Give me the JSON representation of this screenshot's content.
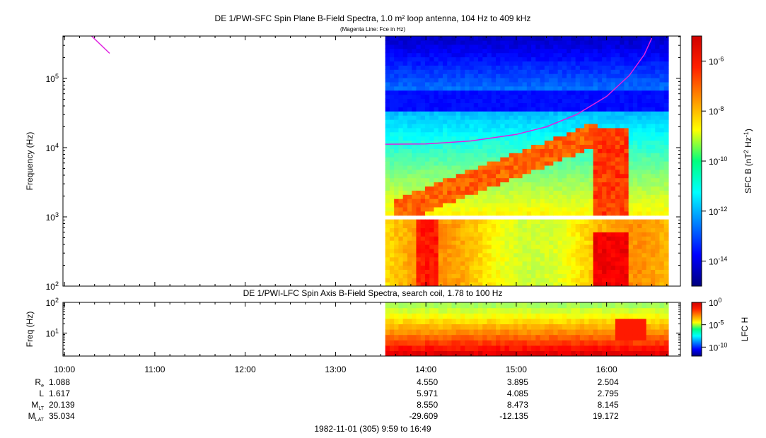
{
  "chart_data": [
    {
      "type": "heatmap",
      "title": "DE 1/PWI-SFC  Spin Plane B-Field Spectra, 1.0 m² loop antenna, 104 Hz to 409 kHz",
      "subtitle": "(Magenta Line: Fce in Hz)",
      "ylabel": "Frequency (Hz)",
      "yscale": "log",
      "ylim": [
        100,
        409000
      ],
      "yticks": [
        {
          "value": 100,
          "base": "10",
          "exp": "2"
        },
        {
          "value": 1000,
          "base": "10",
          "exp": "3"
        },
        {
          "value": 10000,
          "base": "10",
          "exp": "4"
        },
        {
          "value": 100000,
          "base": "10",
          "exp": "5"
        }
      ],
      "data_start_time": "13:33",
      "data_end_time": "16:41",
      "data_gap_hz": [
        1000,
        900
      ],
      "colorbar": {
        "label_prefix": "SFC B (nT",
        "label_exp1": "2",
        "label_mid": " Hz",
        "label_exp2": "-1",
        "label_suffix": ")",
        "scale": "log",
        "range": [
          1e-15,
          1e-05
        ],
        "ticks": [
          {
            "value": 1e-06,
            "base": "10",
            "exp": "-6"
          },
          {
            "value": 1e-08,
            "base": "10",
            "exp": "-8"
          },
          {
            "value": 1e-10,
            "base": "10",
            "exp": "-10"
          },
          {
            "value": 1e-12,
            "base": "10",
            "exp": "-12"
          },
          {
            "value": 1e-14,
            "base": "10",
            "exp": "-14"
          }
        ]
      },
      "series": [
        {
          "name": "Fce in Hz",
          "color": "#e020e0",
          "x": [
            "10:18",
            "10:30"
          ],
          "y": [
            409000,
            230000
          ]
        },
        {
          "name": "Fce in Hz",
          "color": "#e020e0",
          "x": [
            "13:33",
            "14:00",
            "14:30",
            "15:00",
            "15:20",
            "15:40",
            "16:00",
            "16:15",
            "16:25",
            "16:30"
          ],
          "y": [
            11200,
            11300,
            12500,
            15500,
            20000,
            30000,
            55000,
            110000,
            220000,
            380000
          ]
        }
      ]
    },
    {
      "type": "heatmap",
      "title": "DE 1/PWI-LFC  Spin Axis B-Field Spectra, search coil, 1.78 to 100 Hz",
      "ylabel": "Freq (Hz)",
      "yscale": "log",
      "ylim": [
        1.78,
        100
      ],
      "yticks": [
        {
          "value": 10,
          "base": "10",
          "exp": "1"
        },
        {
          "value": 100,
          "base": "10",
          "exp": "2"
        }
      ],
      "data_start_time": "13:33",
      "data_end_time": "16:41",
      "colorbar": {
        "label": "LFC H",
        "scale": "log",
        "range": [
          1e-12,
          1
        ],
        "ticks": [
          {
            "value": 1,
            "base": "10",
            "exp": "0"
          },
          {
            "value": 1e-05,
            "base": "10",
            "exp": "-5"
          },
          {
            "value": 1e-10,
            "base": "10",
            "exp": "-10"
          }
        ]
      }
    }
  ],
  "time_axis": {
    "start": "09:59",
    "end": "16:49",
    "ticks": [
      "10:00",
      "11:00",
      "12:00",
      "13:00",
      "14:00",
      "15:00",
      "16:00"
    ]
  },
  "ephemeris": [
    {
      "label": "R",
      "sub": "e",
      "first": "1.088",
      "values": [
        "4.550",
        "3.895",
        "2.504"
      ]
    },
    {
      "label": "L",
      "sub": "",
      "first": "1.617",
      "values": [
        "5.971",
        "4.085",
        "2.795"
      ]
    },
    {
      "label": "M",
      "sub": "LT",
      "first": "20.139",
      "values": [
        "8.550",
        "8.473",
        "8.145"
      ]
    },
    {
      "label": "M",
      "sub": "LAT",
      "first": "35.034",
      "values": [
        "-29.609",
        "-12.135",
        "19.172"
      ]
    }
  ],
  "footer": "1982-11-01 (305) 9:59 to 16:49"
}
